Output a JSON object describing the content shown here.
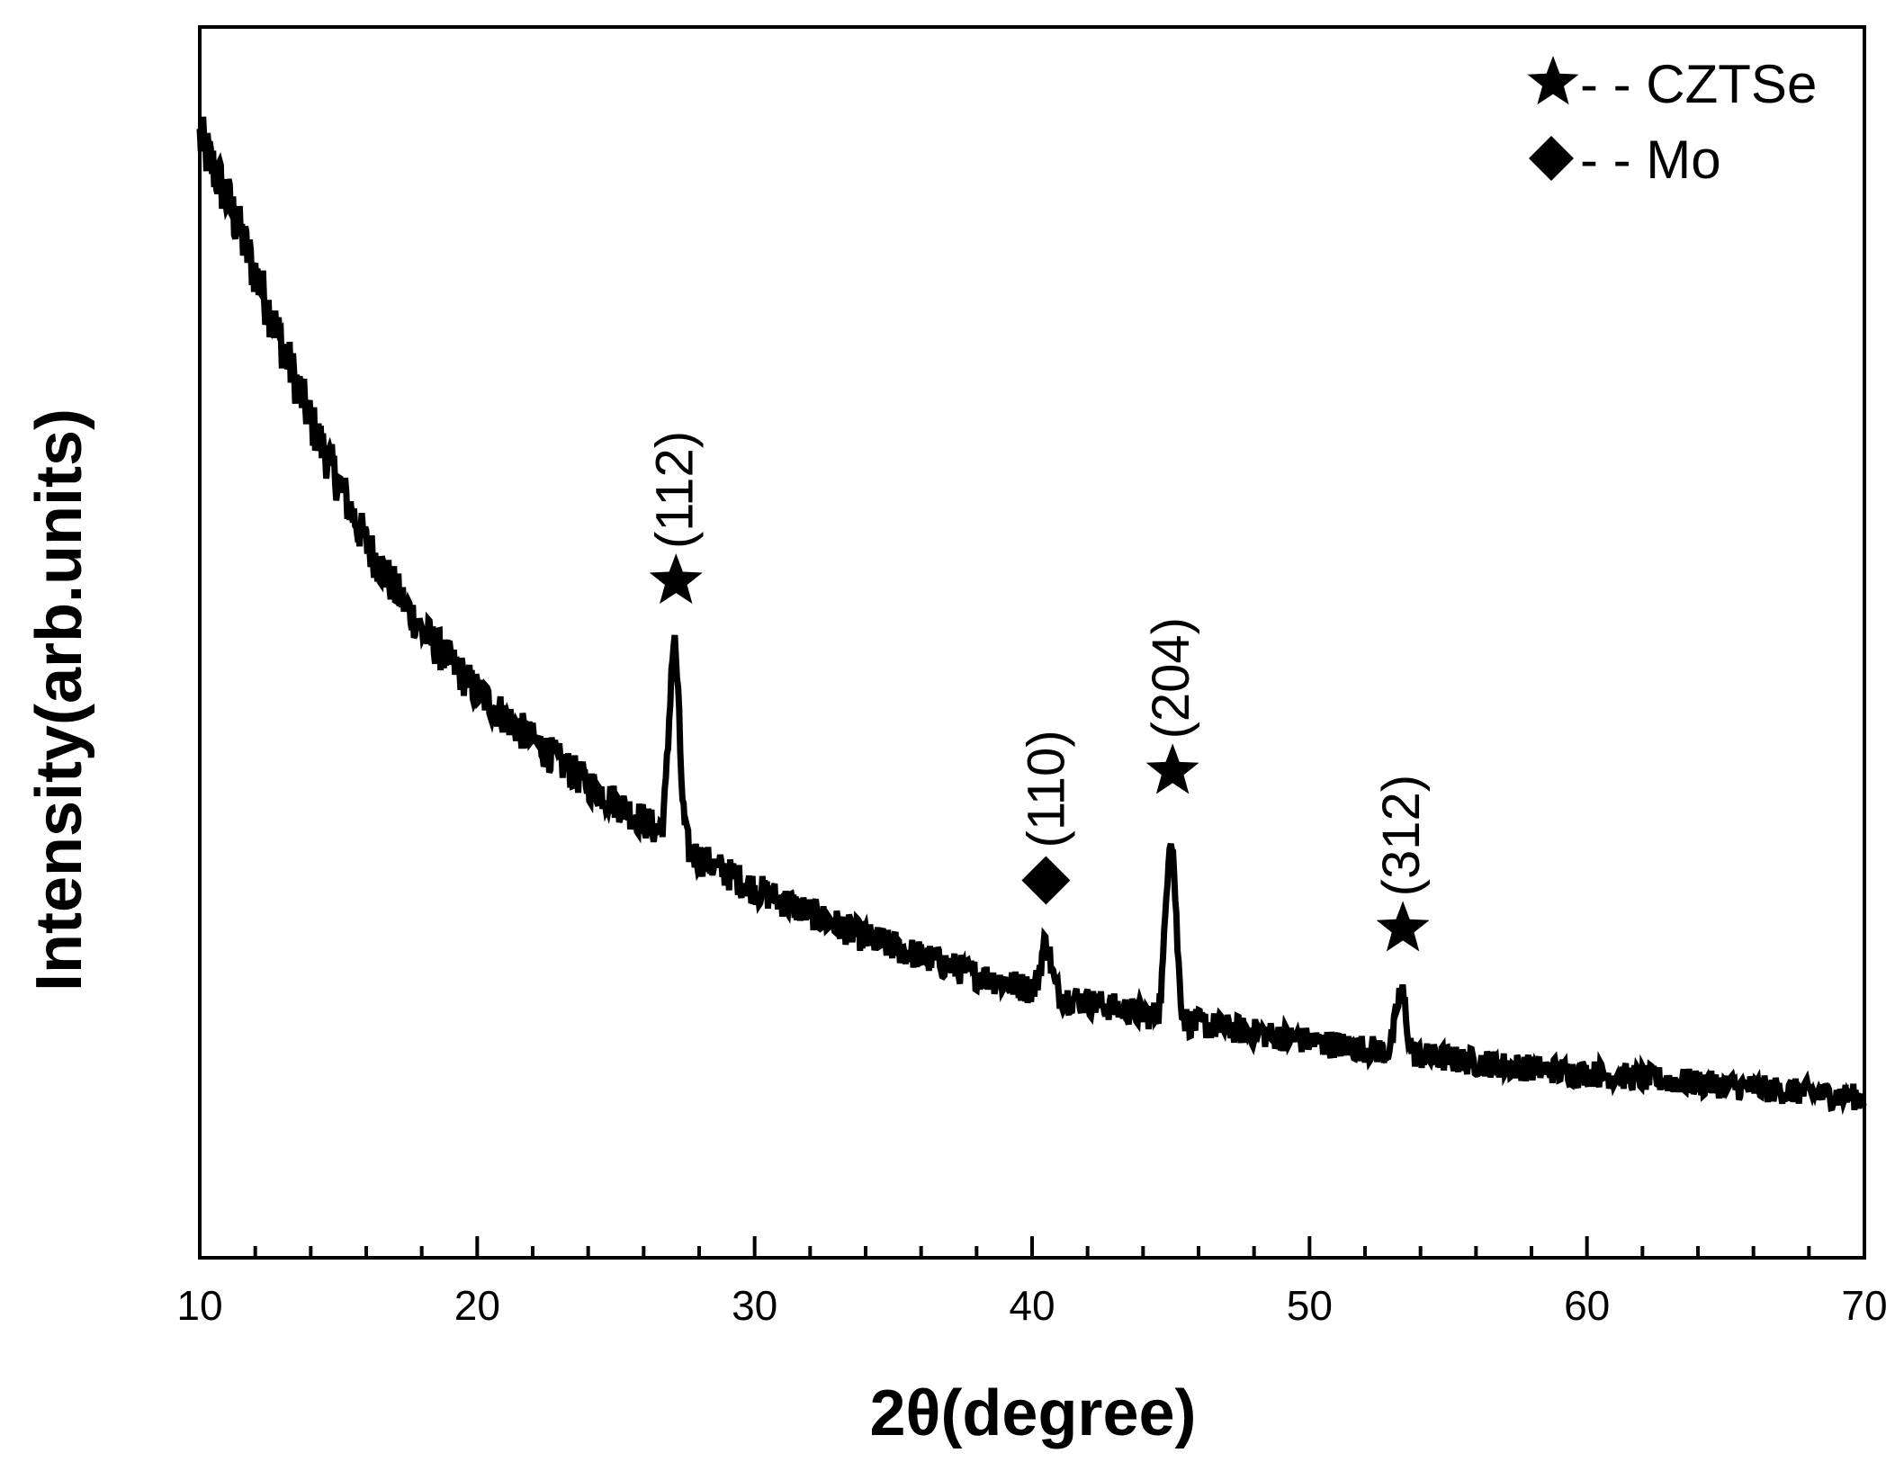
{
  "chart_data": {
    "type": "line",
    "title": "",
    "xlabel": "2θ(degree)",
    "ylabel": "Intensity(arb.units)",
    "xlim": [
      10,
      70
    ],
    "ylim": [
      0,
      100
    ],
    "x_major_ticks": [
      10,
      20,
      30,
      40,
      50,
      60,
      70
    ],
    "x_minor_step": 2,
    "y_ticks_shown": false,
    "grid": false,
    "background_curve": [
      [
        10,
        91
      ],
      [
        11,
        86
      ],
      [
        12,
        80
      ],
      [
        13,
        74
      ],
      [
        14,
        68
      ],
      [
        15,
        63
      ],
      [
        16,
        58
      ],
      [
        18,
        51
      ],
      [
        20,
        46
      ],
      [
        22,
        42
      ],
      [
        24,
        38.5
      ],
      [
        26,
        35.5
      ],
      [
        28,
        32.5
      ],
      [
        30,
        30
      ],
      [
        32,
        28
      ],
      [
        34,
        26
      ],
      [
        36,
        24.5
      ],
      [
        38,
        23
      ],
      [
        40,
        21.8
      ],
      [
        42,
        20.8
      ],
      [
        44,
        19.8
      ],
      [
        46,
        19
      ],
      [
        48,
        18.3
      ],
      [
        50,
        17.6
      ],
      [
        52,
        17
      ],
      [
        54,
        16.4
      ],
      [
        56,
        15.9
      ],
      [
        58,
        15.4
      ],
      [
        60,
        15
      ],
      [
        62,
        14.6
      ],
      [
        64,
        14.2
      ],
      [
        66,
        13.8
      ],
      [
        68,
        13.4
      ],
      [
        70,
        13
      ]
    ],
    "peaks": [
      {
        "phase": "CZTSe",
        "marker": "star",
        "hkl": "(112)",
        "two_theta": 27.1,
        "height": 16
      },
      {
        "phase": "Mo",
        "marker": "diamond",
        "hkl": "(110)",
        "two_theta": 40.5,
        "height": 4
      },
      {
        "phase": "CZTSe",
        "marker": "star",
        "hkl": "(204)",
        "two_theta": 45.0,
        "height": 15
      },
      {
        "phase": "CZTSe",
        "marker": "star",
        "hkl": "(312)",
        "two_theta": 53.3,
        "height": 5
      }
    ],
    "noise_amplitude": 1.6,
    "legend": {
      "position": "top-right",
      "entries": [
        {
          "marker": "star",
          "label": "- - CZTSe"
        },
        {
          "marker": "diamond",
          "label": "- - Mo"
        }
      ]
    },
    "line_color": "#000000"
  }
}
